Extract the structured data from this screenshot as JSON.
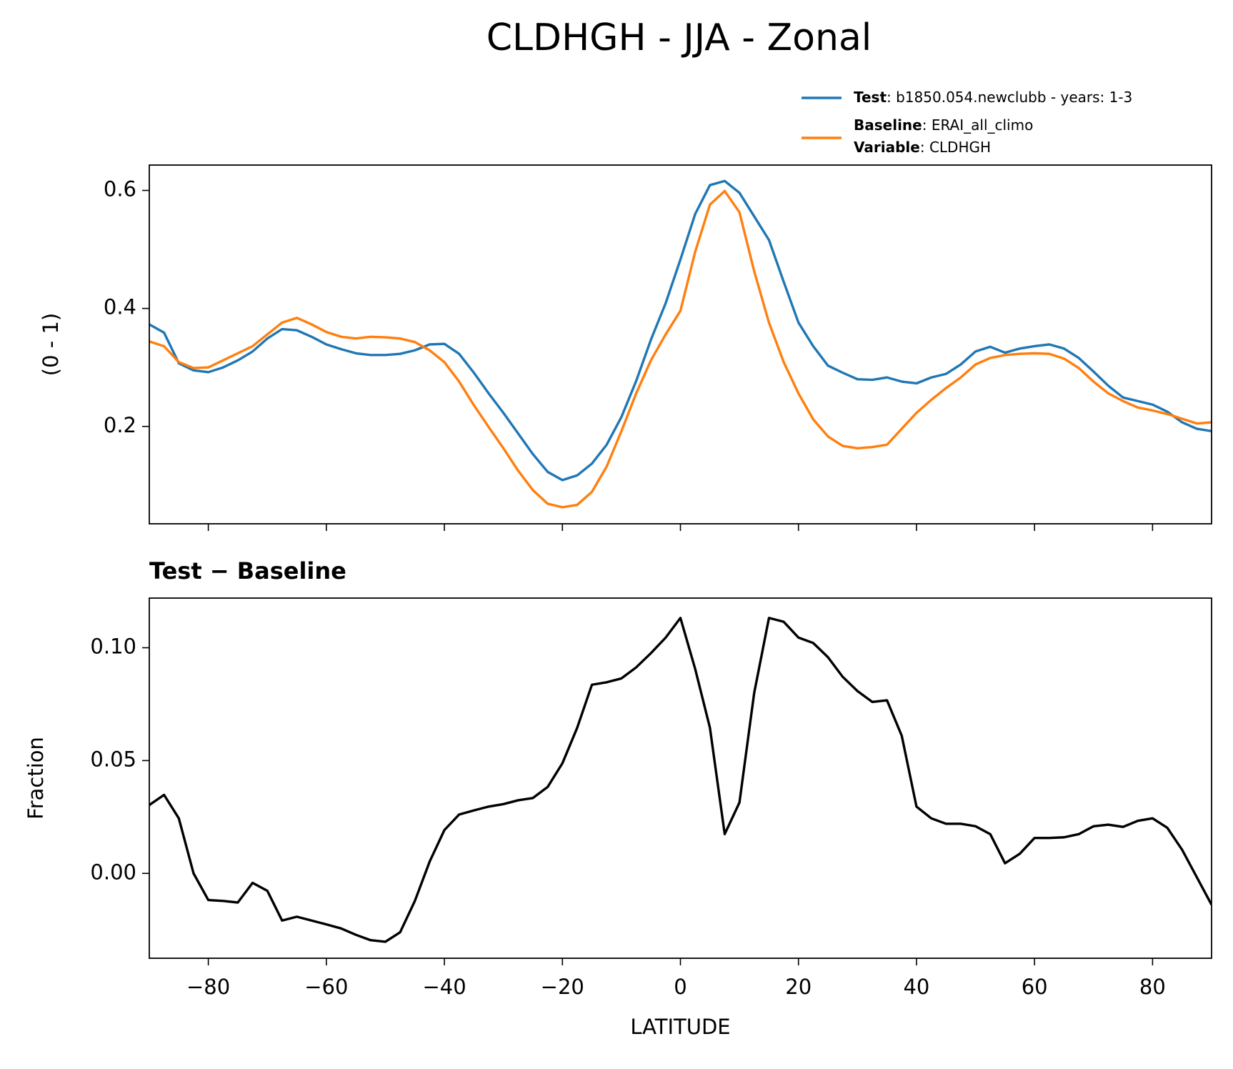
{
  "chart_data": [
    {
      "type": "line",
      "title": "CLDHGH - JJA - Zonal",
      "ylabel": "(0 - 1)",
      "x": [
        -90,
        -87.5,
        -85,
        -82.5,
        -80,
        -77.5,
        -75,
        -72.5,
        -70,
        -67.5,
        -65,
        -62.5,
        -60,
        -57.5,
        -55,
        -52.5,
        -50,
        -47.5,
        -45,
        -42.5,
        -40,
        -37.5,
        -35,
        -32.5,
        -30,
        -27.5,
        -25,
        -22.5,
        -20,
        -17.5,
        -15,
        -12.5,
        -10,
        -7.5,
        -5,
        -2.5,
        0,
        2.5,
        5,
        7.5,
        10,
        12.5,
        15,
        17.5,
        20,
        22.5,
        25,
        27.5,
        30,
        32.5,
        35,
        37.5,
        40,
        42.5,
        45,
        47.5,
        50,
        52.5,
        55,
        57.5,
        60,
        62.5,
        65,
        67.5,
        70,
        72.5,
        75,
        77.5,
        80,
        82.5,
        85,
        87.5,
        90
      ],
      "series": [
        {
          "name": "Test",
          "description": ": b1850.054.newclubb - years: 1-3",
          "color": "#1f77b4",
          "values": [
            0.373,
            0.359,
            0.307,
            0.295,
            0.292,
            0.3,
            0.312,
            0.327,
            0.349,
            0.365,
            0.363,
            0.352,
            0.339,
            0.331,
            0.324,
            0.321,
            0.321,
            0.323,
            0.329,
            0.339,
            0.34,
            0.323,
            0.291,
            0.256,
            0.223,
            0.188,
            0.153,
            0.123,
            0.109,
            0.117,
            0.137,
            0.169,
            0.216,
            0.277,
            0.347,
            0.409,
            0.483,
            0.56,
            0.609,
            0.616,
            0.596,
            0.556,
            0.516,
            0.445,
            0.376,
            0.336,
            0.303,
            0.291,
            0.28,
            0.279,
            0.283,
            0.276,
            0.273,
            0.283,
            0.289,
            0.305,
            0.327,
            0.335,
            0.325,
            0.332,
            0.336,
            0.339,
            0.332,
            0.316,
            0.293,
            0.269,
            0.249,
            0.243,
            0.237,
            0.225,
            0.207,
            0.196,
            0.192
          ]
        },
        {
          "name": "Baseline",
          "description": ": ERAI_all_climo",
          "color": "#ff7f0e",
          "values": [
            0.344,
            0.336,
            0.309,
            0.299,
            0.3,
            0.312,
            0.324,
            0.336,
            0.356,
            0.376,
            0.384,
            0.373,
            0.36,
            0.352,
            0.349,
            0.352,
            0.351,
            0.349,
            0.343,
            0.329,
            0.309,
            0.276,
            0.236,
            0.199,
            0.163,
            0.125,
            0.092,
            0.069,
            0.063,
            0.067,
            0.089,
            0.132,
            0.192,
            0.256,
            0.312,
            0.356,
            0.396,
            0.496,
            0.576,
            0.599,
            0.563,
            0.463,
            0.376,
            0.309,
            0.256,
            0.212,
            0.183,
            0.167,
            0.163,
            0.165,
            0.169,
            0.196,
            0.223,
            0.245,
            0.265,
            0.283,
            0.305,
            0.316,
            0.321,
            0.323,
            0.324,
            0.323,
            0.315,
            0.299,
            0.276,
            0.256,
            0.243,
            0.232,
            0.227,
            0.221,
            0.213,
            0.205,
            0.207
          ]
        }
      ],
      "legend_extra": {
        "name": "Variable",
        "description": ": CLDHGH"
      },
      "xlim": [
        -90,
        90
      ],
      "xticks": [
        -80,
        -60,
        -40,
        -20,
        0,
        20,
        40,
        60,
        80
      ],
      "ylim": [
        0.035,
        0.643
      ],
      "yticks": [
        0.2,
        0.4,
        0.6
      ]
    },
    {
      "type": "line",
      "title": "Test − Baseline",
      "ylabel": "Fraction",
      "xlabel": "LATITUDE",
      "color": "#000000",
      "x": [
        -90,
        -87.5,
        -85,
        -82.5,
        -80,
        -77.5,
        -75,
        -72.5,
        -70,
        -67.5,
        -65,
        -62.5,
        -60,
        -57.5,
        -55,
        -52.5,
        -50,
        -47.5,
        -45,
        -42.5,
        -40,
        -37.5,
        -35,
        -32.5,
        -30,
        -27.5,
        -25,
        -22.5,
        -20,
        -17.5,
        -15,
        -12.5,
        -10,
        -7.5,
        -5,
        -2.5,
        0,
        2.5,
        5,
        7.5,
        10,
        12.5,
        15,
        17.5,
        20,
        22.5,
        25,
        27.5,
        30,
        32.5,
        35,
        37.5,
        40,
        42.5,
        45,
        47.5,
        50,
        52.5,
        55,
        57.5,
        60,
        62.5,
        65,
        67.5,
        70,
        72.5,
        75,
        77.5,
        80,
        82.5,
        85,
        87.5,
        90
      ],
      "values": [
        0.0303,
        0.0348,
        0.0244,
        0.0,
        -0.0118,
        -0.0122,
        -0.0129,
        -0.0042,
        -0.0077,
        -0.0209,
        -0.0192,
        -0.0209,
        -0.0226,
        -0.0244,
        -0.0272,
        -0.0296,
        -0.0303,
        -0.0261,
        -0.0122,
        0.0052,
        0.0192,
        0.0261,
        0.0279,
        0.0296,
        0.0307,
        0.0324,
        0.0334,
        0.0383,
        0.0488,
        0.0645,
        0.0836,
        0.0847,
        0.0864,
        0.0913,
        0.0976,
        0.1045,
        0.1132,
        0.0906,
        0.0645,
        0.0174,
        0.0314,
        0.08,
        0.1132,
        0.1115,
        0.1045,
        0.1021,
        0.0958,
        0.0871,
        0.0808,
        0.076,
        0.0767,
        0.061,
        0.0296,
        0.0244,
        0.022,
        0.022,
        0.0209,
        0.0174,
        0.0045,
        0.0087,
        0.0157,
        0.0157,
        0.016,
        0.0174,
        0.0209,
        0.0216,
        0.0206,
        0.0233,
        0.0244,
        0.0202,
        0.0105,
        -0.0017,
        -0.0139
      ],
      "xlim": [
        -90,
        90
      ],
      "xticks": [
        {
          "value": -80,
          "label": "−80"
        },
        {
          "value": -60,
          "label": "−60"
        },
        {
          "value": -40,
          "label": "−40"
        },
        {
          "value": -20,
          "label": "−20"
        },
        0,
        20,
        40,
        60,
        80
      ],
      "ylim": [
        -0.0376,
        0.122
      ],
      "yticks": [
        {
          "value": 0,
          "label": "0.00"
        },
        {
          "value": 0.05,
          "label": "0.05"
        },
        {
          "value": 0.1,
          "label": "0.10"
        }
      ]
    }
  ]
}
